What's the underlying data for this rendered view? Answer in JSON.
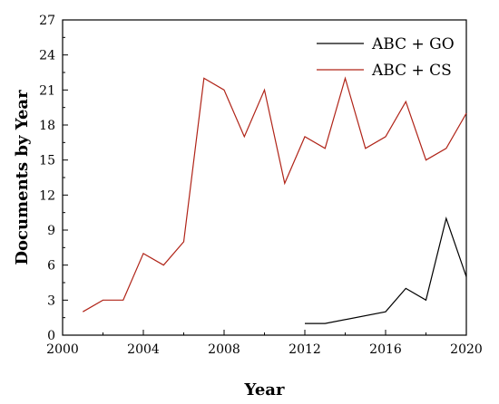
{
  "chart_data": {
    "type": "line",
    "xlabel": "Year",
    "ylabel": "Documents by Year",
    "xlim": [
      2000,
      2020
    ],
    "ylim": [
      0,
      27
    ],
    "xticks": [
      2000,
      2004,
      2008,
      2012,
      2016,
      2020
    ],
    "yticks": [
      0,
      3,
      6,
      9,
      12,
      15,
      18,
      21,
      24,
      27
    ],
    "grid": false,
    "legend_position": "top-right",
    "series": [
      {
        "name": "ABC + GO",
        "color": "#000000",
        "x": [
          2012,
          2013,
          2016,
          2017,
          2018,
          2019,
          2020
        ],
        "y": [
          1,
          1,
          2,
          4,
          3,
          10,
          5
        ]
      },
      {
        "name": "ABC + CS",
        "color": "#b02418",
        "x": [
          2001,
          2002,
          2003,
          2004,
          2005,
          2006,
          2007,
          2008,
          2009,
          2010,
          2011,
          2012,
          2013,
          2014,
          2015,
          2016,
          2017,
          2018,
          2019,
          2020
        ],
        "y": [
          2,
          3,
          3,
          7,
          6,
          8,
          22,
          21,
          17,
          21,
          13,
          17,
          16,
          22,
          16,
          17,
          20,
          15,
          16,
          19
        ]
      }
    ]
  }
}
